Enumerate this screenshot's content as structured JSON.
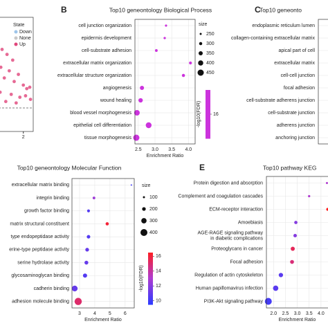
{
  "chart_data": [
    {
      "type": "scatter",
      "x": [
        1.14,
        1.34,
        1.57,
        1.09,
        1.43,
        1.8,
        1.23,
        1.63,
        2,
        2.14,
        1.06,
        1.51,
        1.86,
        2.29,
        1.29,
        1.71,
        2.09,
        2.26
      ],
      "y": [
        5.75,
        5.4,
        5,
        4.5,
        4.25,
        4,
        3.75,
        3.5,
        3.25,
        3,
        2.75,
        2.6,
        2.4,
        2.25,
        2.1,
        2,
        2.5,
        3.1
      ],
      "color": "#e0457b",
      "xlim": [
        1,
        2.4
      ],
      "ylim": [
        0,
        8
      ],
      "xticks": [
        2
      ],
      "hline": 1.65,
      "legend_title": "State",
      "legend": [
        {
          "name": "Down",
          "color": "#9ec5ea"
        },
        {
          "name": "None",
          "color": "#c8c8c8"
        },
        {
          "name": "Up",
          "color": "#e0457b"
        }
      ]
    },
    {
      "type": "dot",
      "label": "B",
      "title": "Top10 geneontology Biological Process",
      "xlabel": "Enrichment Ratio",
      "categories": [
        "cell junction organization",
        "epidermis development",
        "cell-substrate adhesion",
        "extracellular matrix organization",
        "extracellular structure organization",
        "angiogenesis",
        "wound healing",
        "blood vessel morphogenesis",
        "epithelial cell differentiation",
        "tissue morphogenesis"
      ],
      "values": [
        3.33,
        3.29,
        3.04,
        4.06,
        3.85,
        2.61,
        2.57,
        2.46,
        2.81,
        2.44
      ],
      "sizes": [
        255,
        260,
        280,
        290,
        300,
        350,
        360,
        420,
        430,
        450
      ],
      "fdr": [
        16,
        16,
        16,
        16,
        16,
        16,
        16,
        16,
        16,
        16
      ],
      "xlim": [
        2.4,
        4.2
      ],
      "xticks": [
        2.5,
        {
          "value": 3,
          "label": "3.0"
        },
        3.5,
        {
          "value": 4,
          "label": "4.0"
        }
      ],
      "size_title": "size",
      "size_values": [
        250,
        300,
        350,
        400,
        450
      ],
      "colorbar_title": "-log10(FDR)",
      "colorbar_ticks": [
        16
      ],
      "clim": [
        15,
        17
      ],
      "colorscale": [
        "#cc33dd",
        "#cc33dd"
      ]
    },
    {
      "type": "dot",
      "label": "C",
      "title": "Top10 geneonto",
      "categories": [
        "endoplasmic reticulum lumen",
        "collagen-containing extracellular matrix",
        "apical part of cell",
        "extracellular matrix",
        "cell-cell junction",
        "focal adhesion",
        "cell-substrate adherens junction",
        "cell-substrate junction",
        "adherens junction",
        "anchoring junction"
      ]
    },
    {
      "type": "dot",
      "title": "Top10 geneontology Molecular Function",
      "xlabel": "Enrichment Ratio",
      "categories": [
        "extracellular matrix binding",
        "integrin binding",
        "growth factor binding",
        "matrix structural constituent",
        "type endopeptidase activity",
        "erine-type peptidase activity",
        "serine hydrolase activity",
        "glycosaminoglycan binding",
        "cadherin binding",
        "adhesion molecule binding"
      ],
      "values": [
        6.41,
        3.95,
        3.59,
        4.82,
        3.59,
        3.5,
        3.45,
        3.36,
        2.68,
        2.91
      ],
      "sizes": [
        60,
        140,
        150,
        170,
        190,
        200,
        210,
        230,
        330,
        420
      ],
      "fdr": [
        10,
        12.5,
        10.5,
        16,
        10.5,
        11,
        11,
        10.5,
        11,
        15
      ],
      "xlim": [
        2.5,
        6.6
      ],
      "xticks": [
        3,
        4,
        5,
        6
      ],
      "size_title": "size",
      "size_values": [
        100,
        200,
        300,
        400
      ],
      "colorbar_title": "-log10(FDR)",
      "colorbar_ticks": [
        16,
        14,
        12,
        10
      ],
      "clim": [
        9.5,
        16.5
      ],
      "colorscale": [
        "#2f3bff",
        "#b03cd0",
        "#ff1e1e"
      ]
    },
    {
      "type": "dot",
      "label": "E",
      "title": "Top10 pathway KEG",
      "xlabel": "Enrichment Ratio",
      "categories": [
        "Protein digestion and absorption",
        "Complement and coagulation cascades",
        "ECM-receptor interaction",
        "Amoebiasis",
        "AGE-RAGE signaling pathway\nin diabetic complications",
        "Proteoglycans in cancer",
        "Focal adhesion",
        "Regulation of actin cytoskeleton",
        "Human papillomavirus infection",
        "PI3K-Akt signaling pathway"
      ],
      "values": [
        4.25,
        3.5,
        4.28,
        2.94,
        2.91,
        2.81,
        2.78,
        2.31,
        2.09,
        1.78
      ],
      "sizes": [
        40,
        45,
        60,
        70,
        75,
        90,
        85,
        95,
        120,
        160
      ],
      "fdr": [
        13,
        13,
        16,
        12,
        12,
        15,
        14.5,
        11,
        11,
        10.5
      ],
      "xlim": [
        1.7,
        4.47
      ],
      "xticks": [
        {
          "value": 2,
          "label": "2.0"
        },
        2.5,
        {
          "value": 3,
          "label": "3.0"
        },
        3.5,
        {
          "value": 4,
          "label": "4.0"
        }
      ],
      "clim": [
        10,
        16
      ],
      "colorscale": [
        "#2f3bff",
        "#b03cd0",
        "#ff1e1e"
      ]
    }
  ]
}
